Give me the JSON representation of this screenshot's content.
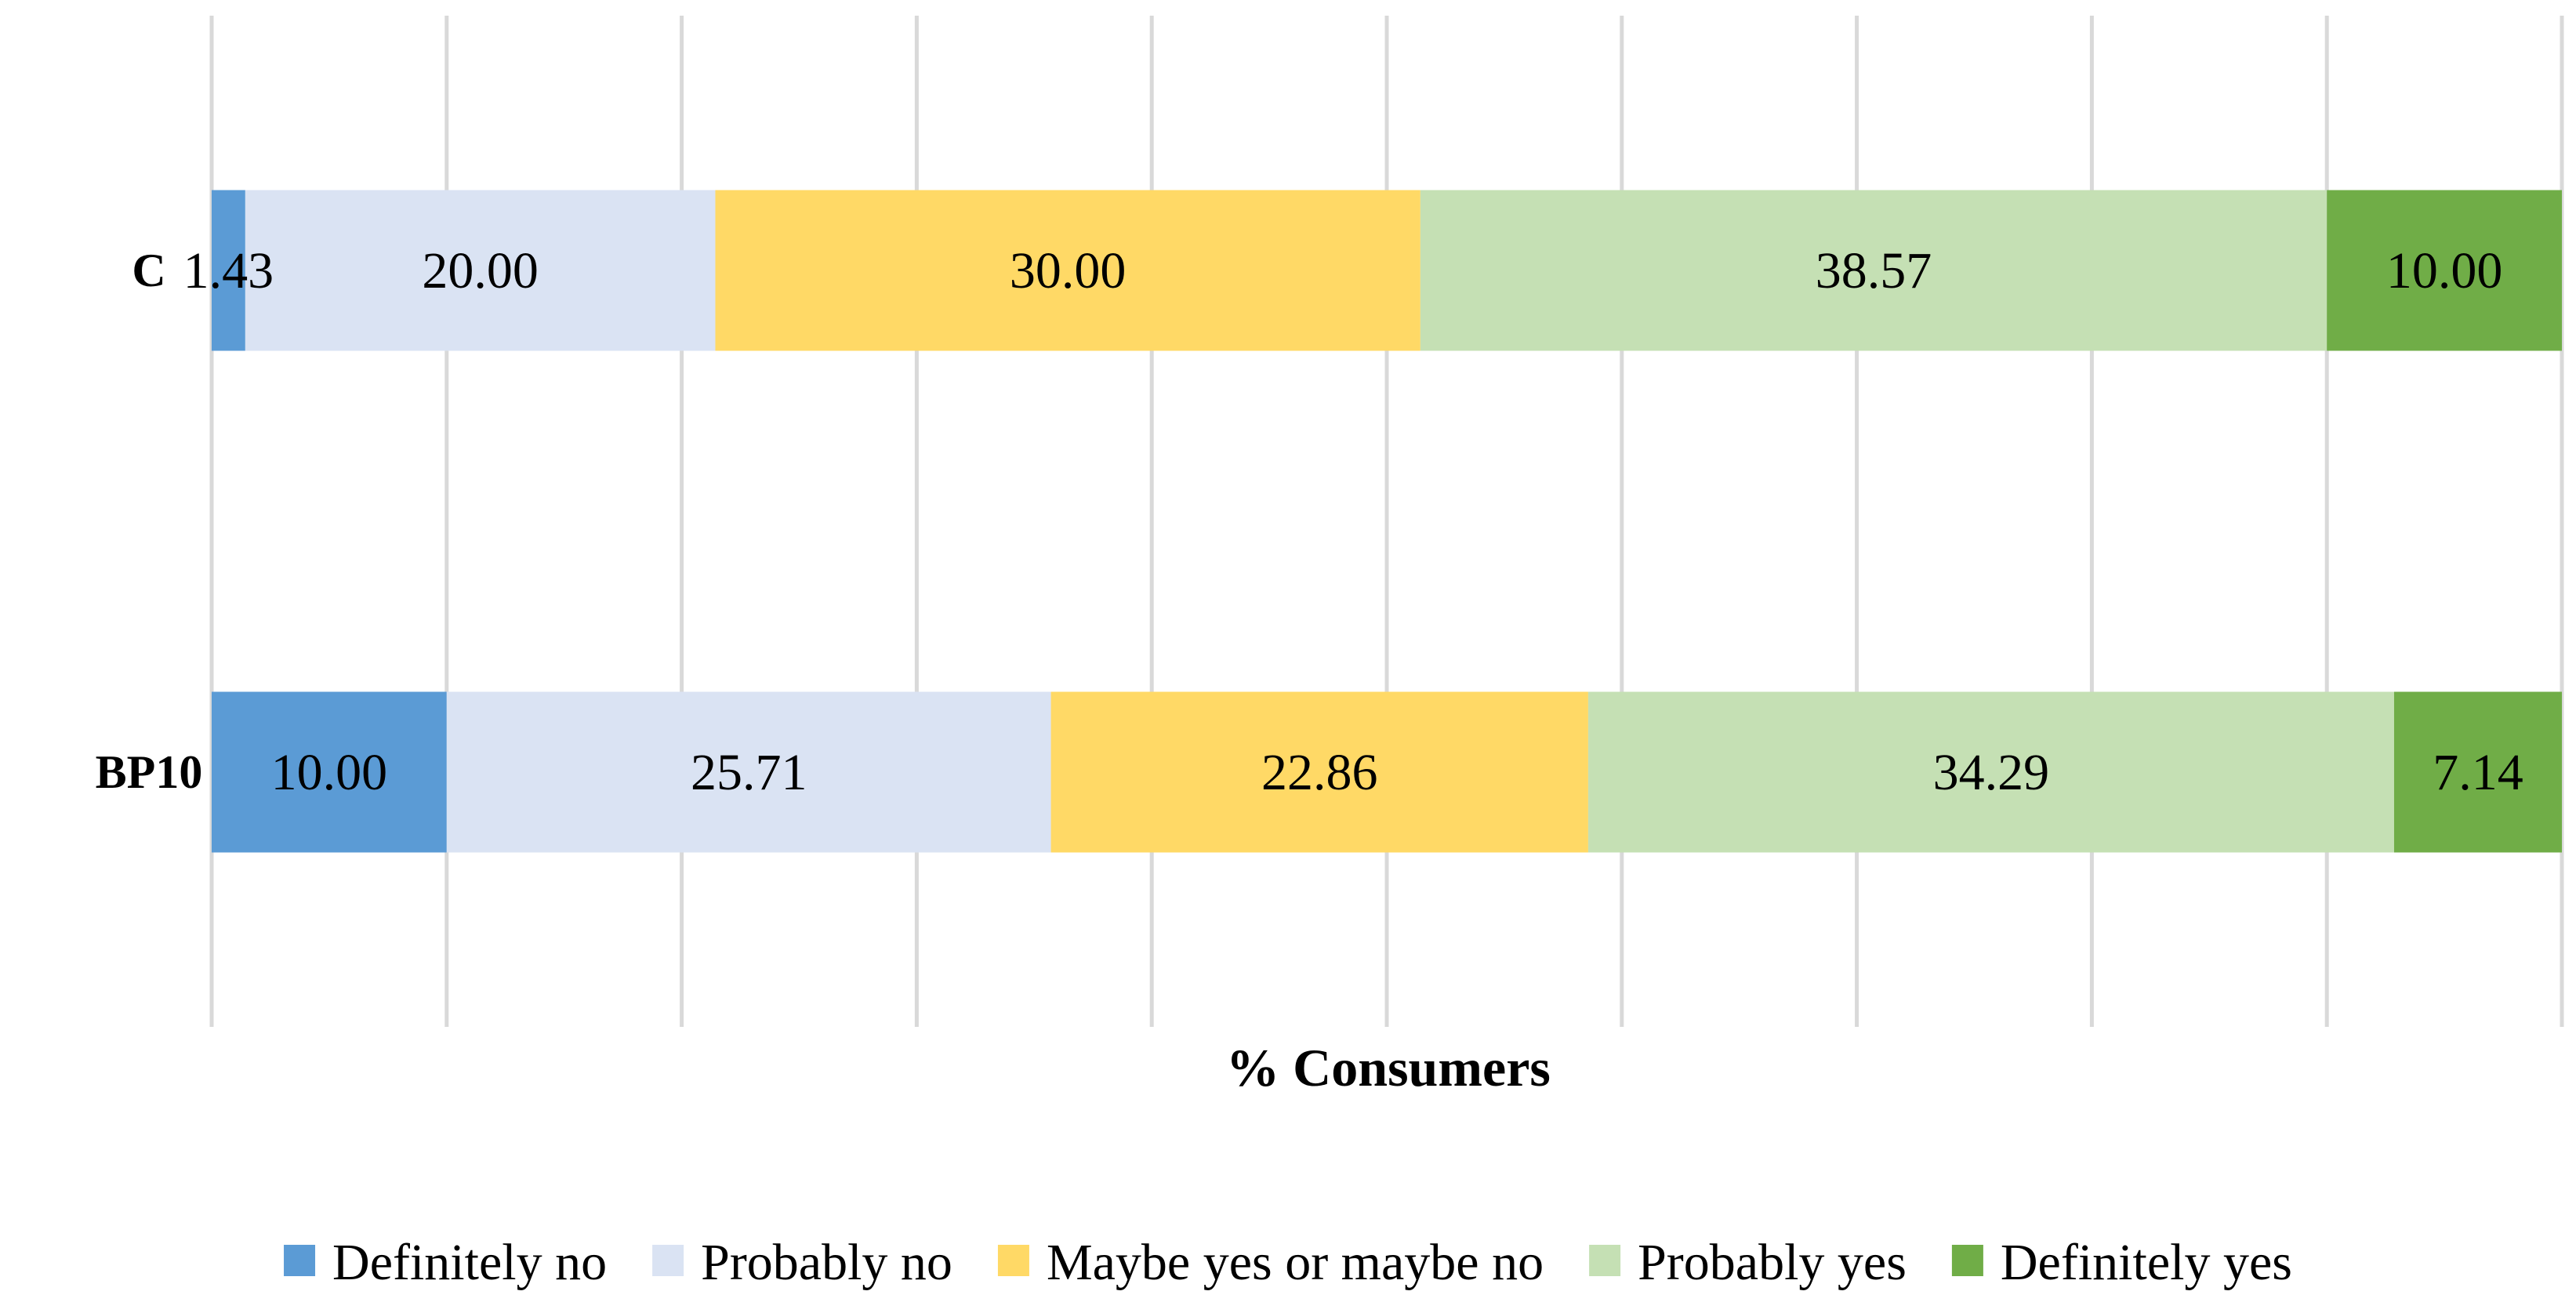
{
  "chart_data": {
    "type": "bar",
    "orientation": "horizontal",
    "stacked": true,
    "title": "",
    "xlabel": "% Consumers",
    "ylabel": "",
    "xlim": [
      0,
      100
    ],
    "grid": true,
    "legend_position": "bottom",
    "categories": [
      "C",
      "BP10"
    ],
    "series": [
      {
        "name": "Definitely no",
        "color": "#5b9bd5",
        "values": [
          1.43,
          10.0
        ],
        "labels": [
          "1.43",
          "10.00"
        ]
      },
      {
        "name": "Probably no",
        "color": "#dae3f3",
        "values": [
          20.0,
          25.71
        ],
        "labels": [
          "20.00",
          "25.71"
        ]
      },
      {
        "name": "Maybe yes or maybe no",
        "color": "#ffd966",
        "values": [
          30.0,
          22.86
        ],
        "labels": [
          "30.00",
          "22.86"
        ]
      },
      {
        "name": "Probably yes",
        "color": "#c5e0b4",
        "values": [
          38.57,
          34.29
        ],
        "labels": [
          "38.57",
          "34.29"
        ]
      },
      {
        "name": "Definitely yes",
        "color": "#70ad47",
        "values": [
          10.0,
          7.14
        ],
        "labels": [
          "10.00",
          "7.14"
        ]
      }
    ]
  }
}
